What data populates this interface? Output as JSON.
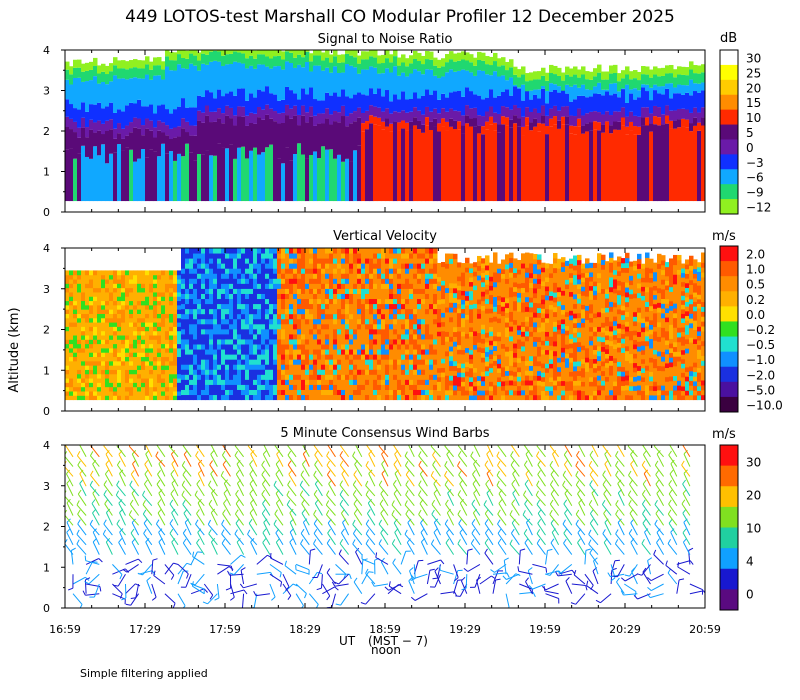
{
  "figure": {
    "title": "449 LOTOS-test Marshall CO Modular Profiler 12 December 2025",
    "ylabel": "Altitude (km)",
    "x_ticks": [
      "16:59",
      "17:29",
      "17:59",
      "18:29",
      "18:59",
      "19:29",
      "19:59",
      "20:29",
      "20:59"
    ],
    "x_label_main": "UT",
    "x_label_sub": "(MST − 7)",
    "x_label_noon": "noon",
    "y_ticks": [
      "0",
      "1",
      "2",
      "3",
      "4"
    ],
    "note": "Simple filtering applied"
  },
  "chart_data": [
    {
      "id": "snr",
      "type": "heatmap",
      "title": "Signal to Noise Ratio",
      "units": "dB",
      "xlim": [
        "16:59",
        "20:59"
      ],
      "ylim": [
        0,
        4
      ],
      "colorbar": {
        "labels": [
          "30",
          "25",
          "20",
          "15",
          "10",
          "5",
          "0",
          "−3",
          "−6",
          "−9",
          "−12"
        ],
        "colors": [
          "#ffffff",
          "#ffff00",
          "#ffcc00",
          "#ff8c00",
          "#ff2a00",
          "#5a0a78",
          "#6a1aa8",
          "#1030ff",
          "#10a8ff",
          "#20d870",
          "#90f020"
        ]
      }
    },
    {
      "id": "vv",
      "type": "heatmap",
      "title": "Vertical Velocity",
      "units": "m/s",
      "xlim": [
        "16:59",
        "20:59"
      ],
      "ylim": [
        0,
        4
      ],
      "colorbar": {
        "labels": [
          "2.0",
          "1.0",
          "0.5",
          "0.2",
          "0.0",
          "−0.2",
          "−0.5",
          "−1.0",
          "−2.0",
          "−5.0",
          "−10.0"
        ],
        "colors": [
          "#ff1010",
          "#ff5a00",
          "#ff8c00",
          "#ffb000",
          "#ffe000",
          "#30e020",
          "#20e0d0",
          "#1090ff",
          "#1a30e0",
          "#4a10a0",
          "#3a0040"
        ]
      }
    },
    {
      "id": "wind",
      "type": "scatter",
      "title": "5 Minute Consensus Wind Barbs",
      "units": "m/s",
      "xlim": [
        "16:59",
        "20:59"
      ],
      "ylim": [
        0,
        4
      ],
      "colorbar": {
        "labels": [
          "30",
          "20",
          "10",
          "4",
          "0"
        ],
        "colors": [
          "#ff1010",
          "#ff6a00",
          "#ffc000",
          "#80e020",
          "#20d0a0",
          "#10a0ff",
          "#1818d0",
          "#5a0a80"
        ]
      }
    }
  ]
}
